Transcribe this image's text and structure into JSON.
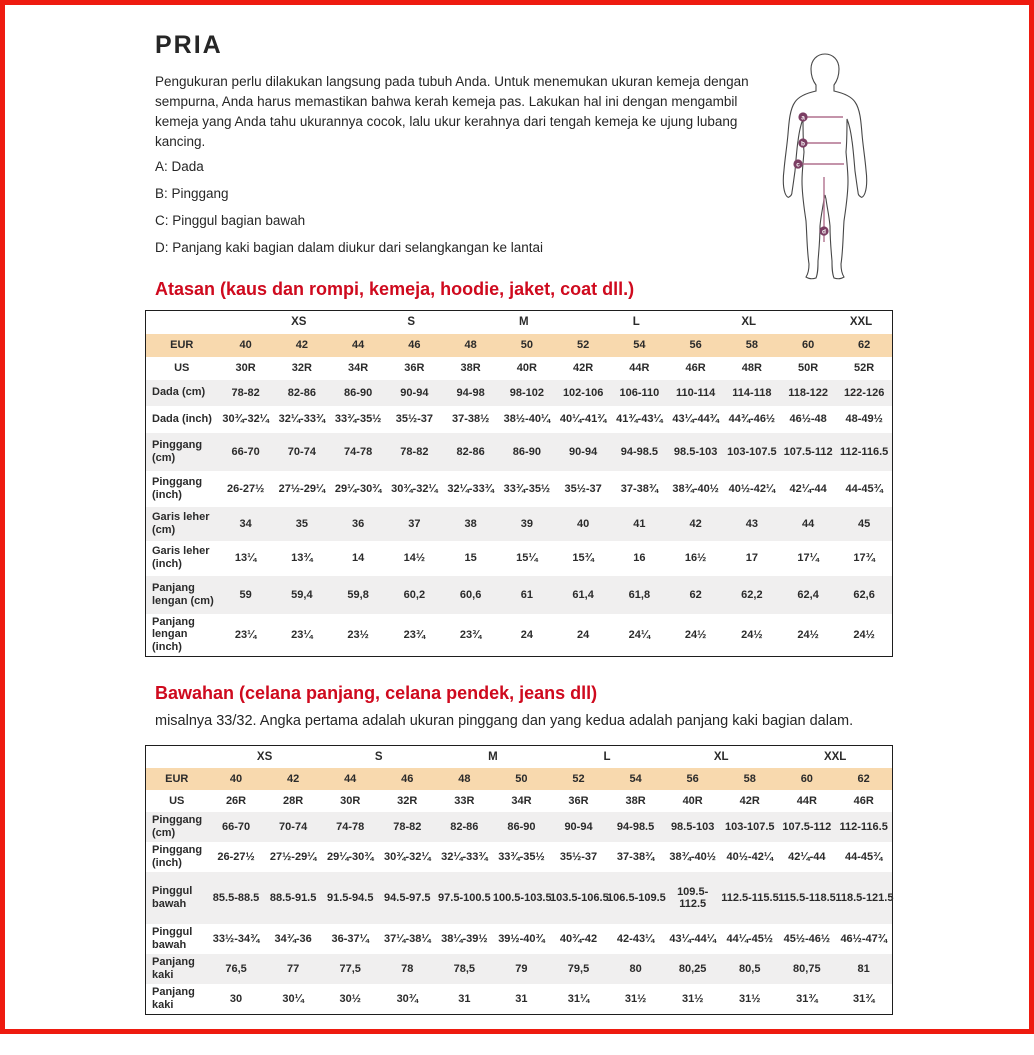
{
  "page": {
    "title": "PRIA",
    "intro": "Pengukuran perlu dilakukan langsung pada tubuh Anda. Untuk menemukan ukuran kemeja dengan sempurna, Anda harus memastikan bahwa kerah kemeja pas. Lakukan hal ini dengan mengambil kemeja yang Anda tahu ukurannya cocok, lalu ukur kerahnya dari tengah kemeja ke ujung lubang kancing.",
    "measure_points": [
      "A: Dada",
      "B: Pinggang",
      "C: Pinggul bagian bawah",
      "D: Panjang kaki bagian dalam diukur dari selangkangan ke lantai"
    ]
  },
  "figure": {
    "markers": [
      "a",
      "b",
      "c",
      "d"
    ],
    "circle_color": "#7b3e63",
    "line_color": "#b0718e",
    "outline_color": "#474747"
  },
  "colors": {
    "page_border_red": "#ee1b10",
    "heading_red": "#cf0a1e",
    "eur_row_bg": "#f8d9ae",
    "alt_row_bg": "#f0efef"
  },
  "tables": {
    "atasan": {
      "heading": "Atasan (kaus dan rompi, kemeja, hoodie, jaket, coat dll.)",
      "size_groups": [
        "XS",
        "S",
        "M",
        "L",
        "XL",
        "XXL"
      ],
      "eur_label": "EUR",
      "us_label": "US",
      "eur": [
        "40",
        "42",
        "44",
        "46",
        "48",
        "50",
        "52",
        "54",
        "56",
        "58",
        "60",
        "62"
      ],
      "us": [
        "30R",
        "32R",
        "34R",
        "36R",
        "38R",
        "40R",
        "42R",
        "44R",
        "46R",
        "48R",
        "50R",
        "52R"
      ],
      "rows": [
        {
          "label": "Dada (cm)",
          "values": [
            "78-82",
            "82-86",
            "86-90",
            "90-94",
            "94-98",
            "98-102",
            "102-106",
            "106-110",
            "110-114",
            "114-118",
            "118-122",
            "122-126"
          ]
        },
        {
          "label": "Dada (inch)",
          "values": [
            "30¾-32¼",
            "32¼-33¾",
            "33¾-35½",
            "35½-37",
            "37-38½",
            "38½-40¼",
            "40¼-41¾",
            "41¾-43¼",
            "43¼-44¾",
            "44¾-46½",
            "46½-48",
            "48-49½"
          ]
        },
        {
          "label": "Pinggang (cm)",
          "values": [
            "66-70",
            "70-74",
            "74-78",
            "78-82",
            "82-86",
            "86-90",
            "90-94",
            "94-98.5",
            "98.5-103",
            "103-107.5",
            "107.5-112",
            "112-116.5"
          ]
        },
        {
          "label": "Pinggang (inch)",
          "values": [
            "26-27½",
            "27½-29¼",
            "29¼-30¾",
            "30¾-32¼",
            "32¼-33¾",
            "33¾-35½",
            "35½-37",
            "37-38¾",
            "38¾-40½",
            "40½-42¼",
            "42¼-44",
            "44-45¾"
          ]
        },
        {
          "label": "Garis leher (cm)",
          "values": [
            "34",
            "35",
            "36",
            "37",
            "38",
            "39",
            "40",
            "41",
            "42",
            "43",
            "44",
            "45"
          ]
        },
        {
          "label": "Garis leher (inch)",
          "values": [
            "13¼",
            "13¾",
            "14",
            "14½",
            "15",
            "15¼",
            "15¾",
            "16",
            "16½",
            "17",
            "17¼",
            "17¾"
          ]
        },
        {
          "label": "Panjang lengan (cm)",
          "values": [
            "59",
            "59,4",
            "59,8",
            "60,2",
            "60,6",
            "61",
            "61,4",
            "61,8",
            "62",
            "62,2",
            "62,4",
            "62,6"
          ]
        },
        {
          "label": "Panjang lengan (inch)",
          "values": [
            "23¼",
            "23¼",
            "23½",
            "23¾",
            "23¾",
            "24",
            "24",
            "24¼",
            "24½",
            "24½",
            "24½",
            "24½"
          ]
        }
      ]
    },
    "bawahan": {
      "heading": "Bawahan (celana panjang, celana pendek, jeans dll)",
      "subtitle": "misalnya 33/32. Angka pertama adalah ukuran pinggang dan yang kedua adalah panjang kaki bagian dalam.",
      "size_groups": [
        "XS",
        "S",
        "M",
        "L",
        "XL",
        "XXL"
      ],
      "eur_label": "EUR",
      "us_label": "US",
      "eur": [
        "40",
        "42",
        "44",
        "46",
        "48",
        "50",
        "52",
        "54",
        "56",
        "58",
        "60",
        "62"
      ],
      "us": [
        "26R",
        "28R",
        "30R",
        "32R",
        "33R",
        "34R",
        "36R",
        "38R",
        "40R",
        "42R",
        "44R",
        "46R"
      ],
      "rows": [
        {
          "label": "Pinggang (cm)",
          "values": [
            "66-70",
            "70-74",
            "74-78",
            "78-82",
            "82-86",
            "86-90",
            "90-94",
            "94-98.5",
            "98.5-103",
            "103-107.5",
            "107.5-112",
            "112-116.5"
          ]
        },
        {
          "label": "Pinggang (inch)",
          "values": [
            "26-27½",
            "27½-29¼",
            "29¼-30¾",
            "30¾-32¼",
            "32¼-33¾",
            "33¾-35½",
            "35½-37",
            "37-38¾",
            "38¾-40½",
            "40½-42¼",
            "42¼-44",
            "44-45¾"
          ]
        },
        {
          "label": "Pinggul bawah",
          "values": [
            "85.5-88.5",
            "88.5-91.5",
            "91.5-94.5",
            "94.5-97.5",
            "97.5-100.5",
            "100.5-103.5",
            "103.5-106.5",
            "106.5-109.5",
            "109.5-\n112.5",
            "112.5-115.5",
            "115.5-118.5",
            "118.5-121.5"
          ]
        },
        {
          "label": "Pinggul bawah",
          "values": [
            "33½-34¾",
            "34¾-36",
            "36-37¼",
            "37¼-38¼",
            "38¼-39½",
            "39½-40¾",
            "40¾-42",
            "42-43¼",
            "43¼-44¼",
            "44¼-45½",
            "45½-46½",
            "46½-47¾"
          ]
        },
        {
          "label": "Panjang kaki",
          "values": [
            "76,5",
            "77",
            "77,5",
            "78",
            "78,5",
            "79",
            "79,5",
            "80",
            "80,25",
            "80,5",
            "80,75",
            "81"
          ]
        },
        {
          "label": "Panjang kaki",
          "values": [
            "30",
            "30¼",
            "30½",
            "30¾",
            "31",
            "31",
            "31¼",
            "31½",
            "31½",
            "31½",
            "31¾",
            "31¾"
          ]
        }
      ]
    }
  }
}
